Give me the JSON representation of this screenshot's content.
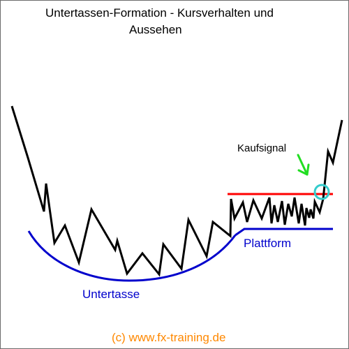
{
  "title": {
    "line1": "Untertassen-Formation - Kursverhalten und",
    "line2": "Aussehen"
  },
  "labels": {
    "buy_signal": "Kaufsignal",
    "platform": "Plattform",
    "saucer": "Untertasse"
  },
  "footer": {
    "copyright": "(c) www.fx-training.de"
  },
  "colors": {
    "price_line": "#000000",
    "resistance_line": "#ff0000",
    "saucer_curve": "#0000cc",
    "platform_line": "#0000cc",
    "signal_arrow": "#22dd22",
    "signal_circle": "#33cccc",
    "footer_text": "#ff8800",
    "label_blue": "#0000cc"
  },
  "icons": {
    "arrow": "green-arrow-icon",
    "circle": "breakout-circle-icon"
  }
}
